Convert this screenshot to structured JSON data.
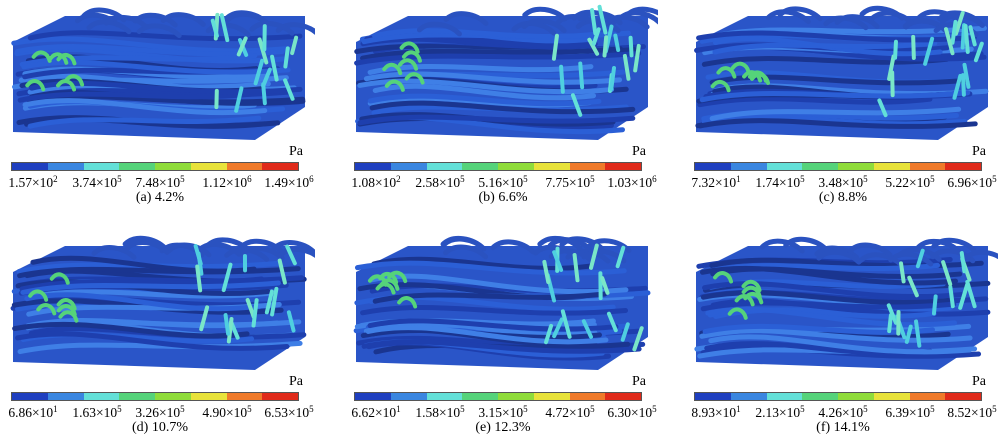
{
  "colors": [
    "#1f3fbf",
    "#3a86e0",
    "#63e0d8",
    "#55d37a",
    "#8fdc3a",
    "#e8e23a",
    "#ef7a2a",
    "#e02a1a"
  ],
  "panels": [
    {
      "caption": "(a) 4.2%",
      "unit": "Pa",
      "ticks": [
        [
          "1.57×10",
          "2"
        ],
        [
          "3.74×10",
          "5"
        ],
        [
          "7.48×10",
          "5"
        ],
        [
          "1.12×10",
          "6"
        ],
        [
          "1.49×10",
          "6"
        ]
      ]
    },
    {
      "caption": "(b) 6.6%",
      "unit": "Pa",
      "ticks": [
        [
          "1.08×10",
          "2"
        ],
        [
          "2.58×10",
          "5"
        ],
        [
          "5.16×10",
          "5"
        ],
        [
          "7.75×10",
          "5"
        ],
        [
          "1.03×10",
          "6"
        ]
      ]
    },
    {
      "caption": "(c) 8.8%",
      "unit": "Pa",
      "ticks": [
        [
          "7.32×10",
          "1"
        ],
        [
          "1.74×10",
          "5"
        ],
        [
          "3.48×10",
          "5"
        ],
        [
          "5.22×10",
          "5"
        ],
        [
          "6.96×10",
          "5"
        ]
      ]
    },
    {
      "caption": "(d) 10.7%",
      "unit": "Pa",
      "ticks": [
        [
          "6.86×10",
          "1"
        ],
        [
          "1.63×10",
          "5"
        ],
        [
          "3.26×10",
          "5"
        ],
        [
          "4.90×10",
          "5"
        ],
        [
          "6.53×10",
          "5"
        ]
      ]
    },
    {
      "caption": "(e) 12.3%",
      "unit": "Pa",
      "ticks": [
        [
          "6.62×10",
          "1"
        ],
        [
          "1.58×10",
          "5"
        ],
        [
          "3.15×10",
          "5"
        ],
        [
          "4.72×10",
          "5"
        ],
        [
          "6.30×10",
          "5"
        ]
      ]
    },
    {
      "caption": "(f) 14.1%",
      "unit": "Pa",
      "ticks": [
        [
          "8.93×10",
          "1"
        ],
        [
          "2.13×10",
          "5"
        ],
        [
          "4.26×10",
          "5"
        ],
        [
          "6.39×10",
          "5"
        ],
        [
          "8.52×10",
          "5"
        ]
      ]
    }
  ]
}
